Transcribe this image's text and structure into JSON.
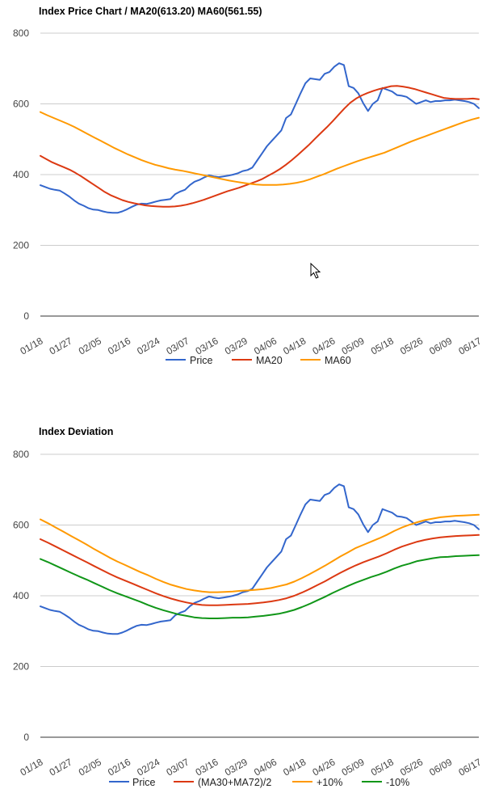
{
  "colors": {
    "blue": "#3366cc",
    "red": "#dc3912",
    "orange": "#ff9900",
    "green": "#109618",
    "grid": "#cccccc"
  },
  "cursor_icon": "mouse-pointer-icon",
  "chart_data": [
    {
      "type": "line",
      "title": "Index Price Chart / MA20(613.20) MA60(561.55)",
      "ylim": [
        0,
        800
      ],
      "yticks": [
        0,
        200,
        400,
        600,
        800
      ],
      "x_tick_labels": [
        "01/18",
        "01/27",
        "02/05",
        "02/16",
        "02/24",
        "03/07",
        "03/16",
        "03/29",
        "04/06",
        "04/18",
        "04/26",
        "05/09",
        "05/18",
        "05/26",
        "06/09",
        "06/17"
      ],
      "legend": [
        "Price",
        "MA20",
        "MA60"
      ],
      "series": [
        {
          "name": "Price",
          "color": "#3366cc",
          "values": [
            370,
            365,
            360,
            357,
            355,
            347,
            338,
            327,
            318,
            312,
            305,
            301,
            300,
            296,
            293,
            292,
            292,
            296,
            302,
            309,
            315,
            318,
            317,
            320,
            324,
            327,
            329,
            331,
            345,
            352,
            357,
            370,
            380,
            385,
            392,
            398,
            395,
            393,
            395,
            397,
            400,
            404,
            410,
            413,
            420,
            440,
            460,
            480,
            495,
            510,
            525,
            560,
            570,
            600,
            630,
            658,
            672,
            670,
            668,
            685,
            690,
            705,
            715,
            710,
            650,
            645,
            630,
            602,
            580,
            600,
            610,
            645,
            640,
            635,
            625,
            623,
            620,
            610,
            600,
            605,
            610,
            605,
            608,
            608,
            610,
            610,
            612,
            610,
            608,
            605,
            600,
            588
          ]
        },
        {
          "name": "MA20",
          "color": "#dc3912",
          "values": [
            453,
            444,
            435,
            428,
            421,
            414,
            405,
            395,
            384,
            373,
            362,
            351,
            342,
            335,
            328,
            323,
            319,
            316,
            313,
            311,
            310,
            309,
            309,
            310,
            312,
            315,
            319,
            324,
            329,
            335,
            341,
            347,
            353,
            358,
            363,
            369,
            375,
            381,
            388,
            397,
            406,
            416,
            428,
            441,
            455,
            470,
            485,
            502,
            518,
            534,
            551,
            569,
            587,
            603,
            615,
            624,
            631,
            637,
            642,
            646,
            650,
            651,
            649,
            646,
            642,
            637,
            632,
            627,
            622,
            617,
            615,
            614,
            614,
            614,
            615,
            613
          ]
        },
        {
          "name": "MA60",
          "color": "#ff9900",
          "values": [
            577,
            568,
            560,
            552,
            544,
            535,
            525,
            515,
            505,
            495,
            485,
            475,
            466,
            457,
            449,
            441,
            434,
            428,
            423,
            418,
            414,
            411,
            407,
            403,
            399,
            395,
            391,
            387,
            383,
            380,
            377,
            374,
            372,
            371,
            371,
            371,
            372,
            374,
            377,
            381,
            387,
            394,
            401,
            409,
            417,
            424,
            431,
            438,
            444,
            450,
            456,
            462,
            470,
            478,
            486,
            494,
            501,
            508,
            515,
            522,
            529,
            536,
            543,
            550,
            556,
            561
          ]
        }
      ]
    },
    {
      "type": "line",
      "title": "Index Deviation",
      "ylim": [
        0,
        800
      ],
      "yticks": [
        0,
        200,
        400,
        600,
        800
      ],
      "x_tick_labels": [
        "01/18",
        "01/27",
        "02/05",
        "02/16",
        "02/24",
        "03/07",
        "03/16",
        "03/29",
        "04/06",
        "04/18",
        "04/26",
        "05/09",
        "05/18",
        "05/26",
        "06/09",
        "06/17"
      ],
      "legend": [
        "Price",
        "(MA30+MA72)/2",
        "+10%",
        "-10%"
      ],
      "series": [
        {
          "name": "Price",
          "color": "#3366cc",
          "values": [
            370,
            365,
            360,
            357,
            355,
            347,
            338,
            327,
            318,
            312,
            305,
            301,
            300,
            296,
            293,
            292,
            292,
            296,
            302,
            309,
            315,
            318,
            317,
            320,
            324,
            327,
            329,
            331,
            345,
            352,
            357,
            370,
            380,
            385,
            392,
            398,
            395,
            393,
            395,
            397,
            400,
            404,
            410,
            413,
            420,
            440,
            460,
            480,
            495,
            510,
            525,
            560,
            570,
            600,
            630,
            658,
            672,
            670,
            668,
            685,
            690,
            705,
            715,
            710,
            650,
            645,
            630,
            602,
            580,
            600,
            610,
            645,
            640,
            635,
            625,
            623,
            620,
            610,
            600,
            605,
            610,
            605,
            608,
            608,
            610,
            610,
            612,
            610,
            608,
            605,
            600,
            588
          ]
        },
        {
          "name": "(MA30+MA72)/2",
          "color": "#dc3912",
          "values": [
            560,
            550,
            539,
            528,
            517,
            506,
            495,
            484,
            473,
            462,
            452,
            443,
            434,
            425,
            416,
            407,
            399,
            392,
            386,
            381,
            377,
            374,
            373,
            373,
            374,
            375,
            376,
            377,
            379,
            381,
            384,
            388,
            393,
            400,
            409,
            419,
            430,
            441,
            453,
            465,
            476,
            486,
            495,
            503,
            511,
            520,
            530,
            539,
            546,
            553,
            558,
            562,
            565,
            567,
            569,
            570,
            571,
            572
          ]
        },
        {
          "name": "+10%",
          "color": "#ff9900",
          "values": [
            616,
            605,
            593,
            581,
            569,
            557,
            545,
            532,
            520,
            508,
            497,
            487,
            477,
            467,
            458,
            448,
            439,
            431,
            425,
            419,
            415,
            412,
            410,
            410,
            411,
            412,
            414,
            415,
            417,
            419,
            422,
            427,
            432,
            440,
            450,
            461,
            473,
            485,
            498,
            511,
            523,
            535,
            544,
            553,
            562,
            572,
            583,
            593,
            601,
            608,
            614,
            618,
            622,
            624,
            626,
            627,
            628,
            629
          ]
        },
        {
          "name": "-10%",
          "color": "#109618",
          "values": [
            504,
            495,
            485,
            475,
            465,
            455,
            446,
            436,
            426,
            416,
            407,
            399,
            391,
            383,
            374,
            366,
            359,
            353,
            347,
            343,
            339,
            337,
            336,
            336,
            337,
            338,
            338,
            339,
            341,
            343,
            346,
            349,
            354,
            360,
            368,
            377,
            387,
            397,
            408,
            418,
            428,
            437,
            445,
            453,
            460,
            468,
            477,
            485,
            491,
            498,
            502,
            506,
            509,
            510,
            512,
            513,
            514,
            515
          ]
        }
      ]
    }
  ]
}
